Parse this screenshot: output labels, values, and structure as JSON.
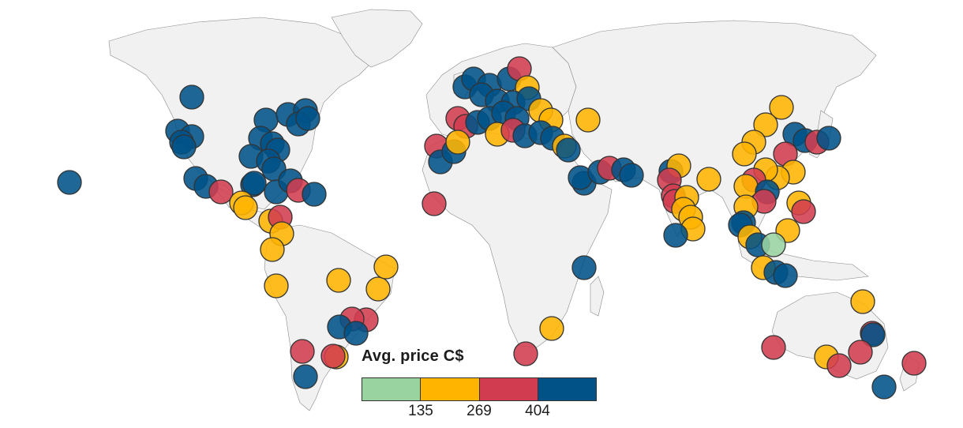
{
  "legend": {
    "title": "Avg. price C$",
    "bins": [
      {
        "color": "#98d3a0"
      },
      {
        "color": "#ffb400"
      },
      {
        "color": "#d23c50"
      },
      {
        "color": "#005287"
      }
    ],
    "ticks": [
      "135",
      "269",
      "404"
    ]
  },
  "colors": {
    "land": "#f1f1f1",
    "border": "#8a8a8a",
    "background": "#ffffff"
  }
}
